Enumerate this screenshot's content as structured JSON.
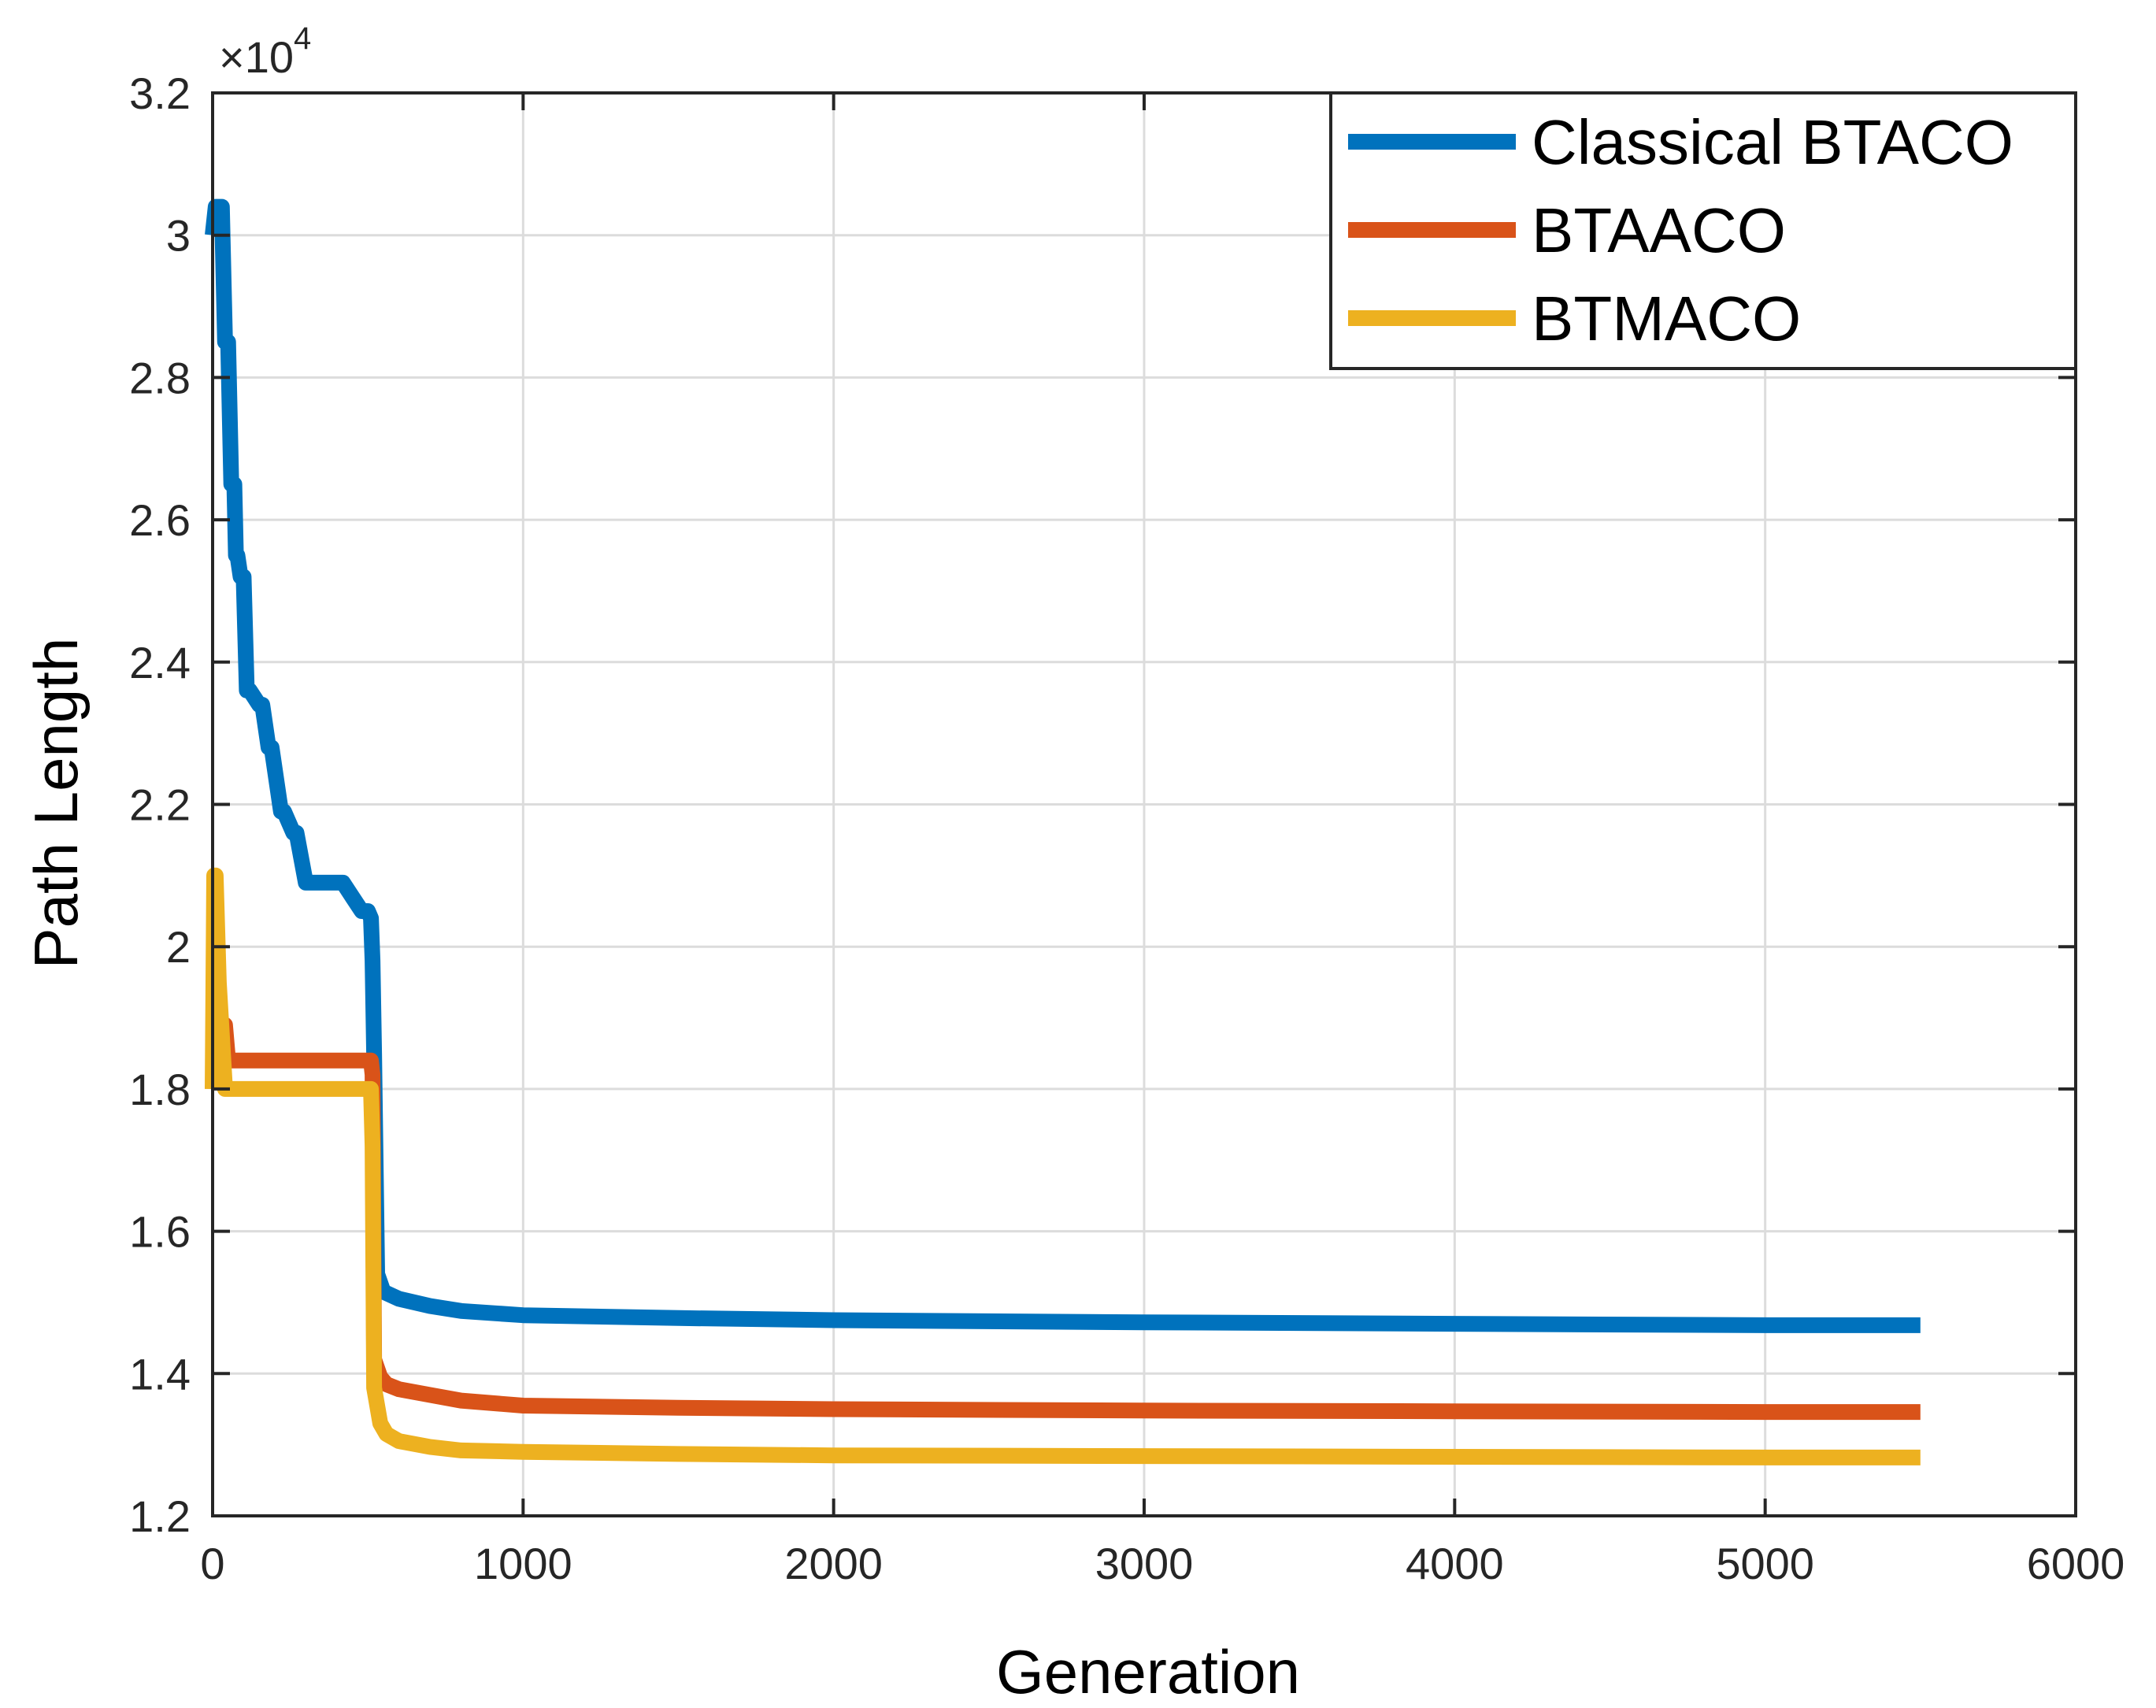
{
  "chart_data": {
    "type": "line",
    "title": "",
    "xlabel": "Generation",
    "ylabel": "Path Length",
    "exponent_label": "×10",
    "exponent_power": "4",
    "xlim": [
      0,
      6000
    ],
    "ylim": [
      1.2,
      3.2
    ],
    "xticks": [
      0,
      1000,
      2000,
      3000,
      4000,
      5000,
      6000
    ],
    "xtick_labels": [
      "0",
      "1000",
      "2000",
      "3000",
      "4000",
      "5000",
      "6000"
    ],
    "yticks": [
      1.2,
      1.4,
      1.6,
      1.8,
      2.0,
      2.2,
      2.4,
      2.6,
      2.8,
      3.0,
      3.2
    ],
    "ytick_labels": [
      "1.2",
      "1.4",
      "1.6",
      "1.8",
      "2",
      "2.2",
      "2.4",
      "2.6",
      "2.8",
      "3",
      "3.2"
    ],
    "grid": true,
    "legend_position": "top-right",
    "series": [
      {
        "name": "Classical BTACO",
        "color": "#0072BD",
        "x": [
          0,
          10,
          30,
          40,
          50,
          60,
          70,
          75,
          80,
          90,
          100,
          110,
          120,
          150,
          160,
          180,
          190,
          220,
          230,
          260,
          270,
          300,
          310,
          330,
          350,
          360,
          380,
          400,
          420,
          450,
          480,
          500,
          510,
          515,
          520,
          530,
          550,
          600,
          700,
          800,
          1000,
          1500,
          2000,
          3000,
          4000,
          5000,
          5500
        ],
        "values": [
          3.0,
          3.04,
          3.04,
          2.85,
          2.85,
          2.65,
          2.65,
          2.55,
          2.55,
          2.52,
          2.52,
          2.36,
          2.36,
          2.34,
          2.34,
          2.28,
          2.28,
          2.19,
          2.19,
          2.16,
          2.16,
          2.09,
          2.09,
          2.09,
          2.09,
          2.09,
          2.09,
          2.09,
          2.09,
          2.07,
          2.05,
          2.05,
          2.04,
          1.98,
          1.85,
          1.54,
          1.515,
          1.505,
          1.495,
          1.488,
          1.482,
          1.478,
          1.475,
          1.472,
          1.47,
          1.468,
          1.468
        ]
      },
      {
        "name": "BTAACO",
        "color": "#D95319",
        "x": [
          0,
          10,
          20,
          30,
          40,
          50,
          480,
          500,
          510,
          515,
          520,
          540,
          560,
          600,
          700,
          800,
          1000,
          1500,
          2000,
          3000,
          4000,
          5000,
          5500
        ],
        "values": [
          1.8,
          1.85,
          1.85,
          1.85,
          1.89,
          1.84,
          1.84,
          1.84,
          1.84,
          1.82,
          1.42,
          1.395,
          1.385,
          1.378,
          1.37,
          1.362,
          1.355,
          1.352,
          1.35,
          1.348,
          1.347,
          1.346,
          1.346
        ]
      },
      {
        "name": "BTMACO",
        "color": "#EDB120",
        "x": [
          0,
          5,
          10,
          20,
          40,
          50,
          480,
          500,
          510,
          515,
          520,
          540,
          560,
          600,
          700,
          800,
          1000,
          1500,
          2000,
          3000,
          4000,
          5000,
          5500
        ],
        "values": [
          1.8,
          2.1,
          2.1,
          1.95,
          1.8,
          1.8,
          1.8,
          1.8,
          1.8,
          1.72,
          1.38,
          1.33,
          1.315,
          1.305,
          1.297,
          1.292,
          1.29,
          1.287,
          1.285,
          1.284,
          1.283,
          1.282,
          1.282
        ]
      }
    ]
  }
}
